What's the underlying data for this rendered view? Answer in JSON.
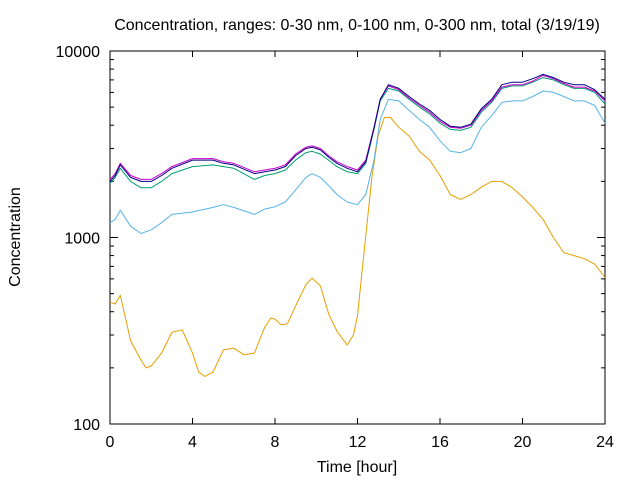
{
  "chart_data": {
    "type": "line",
    "title": "Concentration, ranges: 0-30 nm, 0-100 nm, 0-300 nm, total (3/19/19)",
    "xlabel": "Time [hour]",
    "ylabel": "Concentration",
    "xlim": [
      0,
      24
    ],
    "ylim": [
      100,
      10000
    ],
    "yscale": "log",
    "grid": false,
    "x_ticks": [
      0,
      4,
      8,
      12,
      16,
      20,
      24
    ],
    "x_tick_labels": [
      "0",
      "4",
      "8",
      "12",
      "16",
      "20",
      "24"
    ],
    "y_ticks": [
      100,
      1000,
      10000
    ],
    "y_tick_labels": [
      "100",
      "1000",
      "10000"
    ],
    "series": [
      {
        "color": "#e69f00",
        "x": [
          0,
          0.25,
          0.5,
          1,
          1.5,
          1.75,
          2,
          2.5,
          3,
          3.5,
          4,
          4.3,
          4.6,
          5,
          5.5,
          6,
          6.5,
          7,
          7.5,
          7.8,
          8,
          8.3,
          8.6,
          9,
          9.5,
          9.8,
          10.2,
          10.6,
          11,
          11.5,
          11.8,
          12,
          12.3,
          12.7,
          13,
          13.3,
          13.6,
          14,
          14.5,
          15,
          15.5,
          16,
          16.5,
          17,
          17.5,
          18,
          18.5,
          19,
          19.5,
          20,
          20.5,
          21,
          21.5,
          22,
          22.5,
          23,
          23.5,
          24
        ],
        "y": [
          450,
          440,
          490,
          280,
          220,
          200,
          205,
          240,
          310,
          320,
          240,
          190,
          180,
          190,
          250,
          255,
          235,
          240,
          330,
          370,
          365,
          340,
          345,
          430,
          560,
          605,
          550,
          390,
          315,
          265,
          300,
          380,
          800,
          2100,
          3500,
          4400,
          4400,
          3900,
          3500,
          2900,
          2600,
          2150,
          1700,
          1600,
          1700,
          1860,
          2000,
          2000,
          1850,
          1650,
          1450,
          1250,
          1000,
          830,
          800,
          770,
          720,
          610
        ]
      },
      {
        "color": "#56b4e9",
        "x": [
          0,
          0.25,
          0.5,
          1,
          1.5,
          2,
          2.5,
          3,
          4,
          5,
          5.5,
          6,
          7,
          7.5,
          8,
          8.5,
          9,
          9.5,
          9.8,
          10.2,
          10.6,
          11,
          11.5,
          12,
          12.4,
          12.8,
          13.1,
          13.5,
          14,
          14.5,
          15,
          15.5,
          16,
          16.5,
          17,
          17.5,
          18,
          18.5,
          19,
          19.5,
          20,
          20.5,
          21,
          21.5,
          22,
          22.5,
          23,
          23.5,
          24
        ],
        "y": [
          1200,
          1250,
          1400,
          1150,
          1050,
          1100,
          1200,
          1330,
          1370,
          1450,
          1500,
          1450,
          1330,
          1420,
          1460,
          1550,
          1800,
          2100,
          2200,
          2100,
          1900,
          1700,
          1550,
          1500,
          1700,
          2600,
          4300,
          5500,
          5400,
          4800,
          4300,
          3900,
          3300,
          2900,
          2850,
          3000,
          3900,
          4500,
          5300,
          5400,
          5400,
          5700,
          6100,
          6000,
          5700,
          5400,
          5400,
          5100,
          4100
        ]
      },
      {
        "color": "#009e73",
        "x": [
          0,
          0.25,
          0.5,
          1,
          1.5,
          2,
          2.5,
          3,
          4,
          5,
          5.5,
          6,
          7,
          7.5,
          8,
          8.5,
          9,
          9.5,
          9.8,
          10.2,
          10.6,
          11,
          11.5,
          12,
          12.4,
          12.8,
          13.1,
          13.5,
          14,
          14.5,
          15,
          15.5,
          16,
          16.5,
          17,
          17.5,
          18,
          18.5,
          19,
          19.5,
          20,
          20.5,
          21,
          21.5,
          22,
          22.5,
          23,
          23.5,
          24
        ],
        "y": [
          1950,
          2100,
          2350,
          2000,
          1850,
          1850,
          2000,
          2200,
          2400,
          2450,
          2400,
          2350,
          2050,
          2150,
          2200,
          2300,
          2600,
          2850,
          2900,
          2800,
          2600,
          2400,
          2250,
          2200,
          2500,
          3800,
          5400,
          6300,
          6100,
          5500,
          5000,
          4600,
          4100,
          3800,
          3750,
          3900,
          4700,
          5300,
          6300,
          6500,
          6500,
          6800,
          7200,
          7000,
          6600,
          6300,
          6300,
          6000,
          5200
        ]
      },
      {
        "color": "#cc00cc",
        "x": [
          0,
          0.25,
          0.5,
          1,
          1.5,
          2,
          2.5,
          3,
          4,
          5,
          5.5,
          6,
          7,
          7.5,
          8,
          8.5,
          9,
          9.5,
          9.8,
          10.2,
          10.6,
          11,
          11.5,
          12,
          12.4,
          12.8,
          13.1,
          13.5,
          14,
          14.5,
          15,
          15.5,
          16,
          16.5,
          17,
          17.5,
          18,
          18.5,
          19,
          19.5,
          20,
          20.5,
          21,
          21.5,
          22,
          22.5,
          23,
          23.5,
          24
        ],
        "y": [
          2050,
          2200,
          2500,
          2150,
          2050,
          2050,
          2200,
          2400,
          2650,
          2650,
          2550,
          2500,
          2250,
          2300,
          2350,
          2450,
          2800,
          3050,
          3100,
          3000,
          2750,
          2550,
          2400,
          2300,
          2600,
          3900,
          5500,
          6500,
          6200,
          5600,
          5100,
          4700,
          4200,
          3900,
          3850,
          4000,
          4800,
          5400,
          6400,
          6600,
          6600,
          6900,
          7400,
          7100,
          6700,
          6400,
          6400,
          6100,
          5400
        ]
      },
      {
        "color": "#000080",
        "x": [
          0,
          0.25,
          0.5,
          1,
          1.5,
          2,
          2.5,
          3,
          4,
          5,
          5.5,
          6,
          7,
          7.5,
          8,
          8.5,
          9,
          9.5,
          9.8,
          10.2,
          10.6,
          11,
          11.5,
          12,
          12.4,
          12.8,
          13.1,
          13.5,
          14,
          14.5,
          15,
          15.5,
          16,
          16.5,
          17,
          17.5,
          18,
          18.5,
          19,
          19.5,
          20,
          20.5,
          21,
          21.5,
          22,
          22.5,
          23,
          23.5,
          24
        ],
        "y": [
          2000,
          2150,
          2450,
          2100,
          2000,
          2000,
          2150,
          2350,
          2600,
          2600,
          2500,
          2450,
          2200,
          2250,
          2300,
          2400,
          2750,
          3000,
          3050,
          2950,
          2700,
          2500,
          2350,
          2250,
          2550,
          3850,
          5500,
          6600,
          6300,
          5700,
          5200,
          4800,
          4300,
          3950,
          3900,
          4050,
          4900,
          5500,
          6600,
          6800,
          6800,
          7100,
          7500,
          7200,
          6800,
          6600,
          6600,
          6200,
          5500
        ]
      }
    ]
  }
}
